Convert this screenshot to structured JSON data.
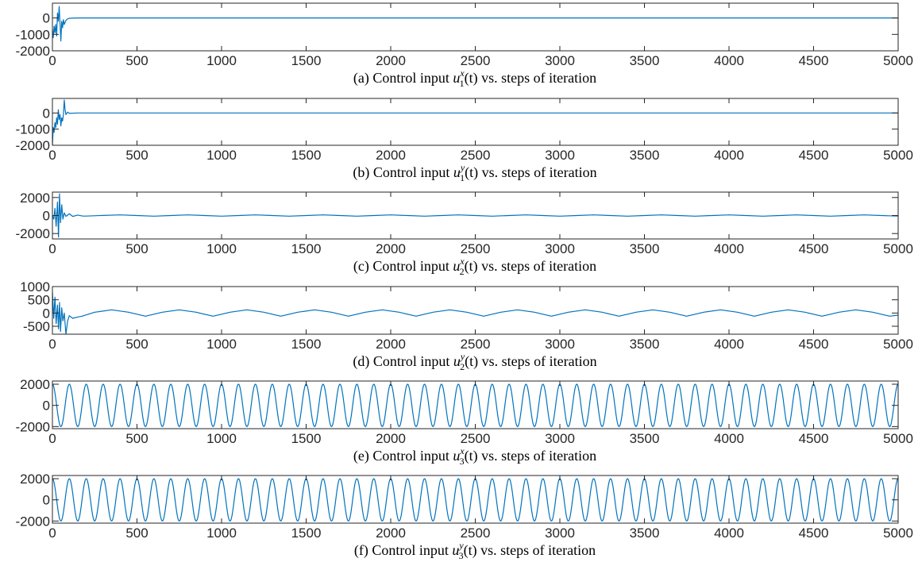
{
  "chart_data": [
    {
      "type": "line",
      "caption": {
        "prefix": "(a) Control input ",
        "var": "u",
        "sub": "1",
        "sup": "x",
        "suffix": "(t) vs. steps of iteration"
      },
      "xlim": [
        0,
        5000
      ],
      "xticks": [
        0,
        500,
        1000,
        1500,
        2000,
        2500,
        3000,
        3500,
        4000,
        4500,
        5000
      ],
      "ylim": [
        -2000,
        900
      ],
      "yticks": [
        -2000,
        -1000,
        0
      ],
      "series": [
        {
          "points": [
            [
              0,
              -700
            ],
            [
              5,
              -1200
            ],
            [
              10,
              -500
            ],
            [
              15,
              -900
            ],
            [
              20,
              -400
            ],
            [
              25,
              -1100
            ],
            [
              30,
              300
            ],
            [
              35,
              -200
            ],
            [
              40,
              700
            ],
            [
              45,
              -300
            ],
            [
              50,
              -1400
            ],
            [
              55,
              -200
            ],
            [
              60,
              -600
            ],
            [
              65,
              -100
            ],
            [
              70,
              -400
            ],
            [
              80,
              -150
            ],
            [
              90,
              -60
            ],
            [
              100,
              -20
            ],
            [
              150,
              0
            ],
            [
              5000,
              0
            ]
          ]
        }
      ]
    },
    {
      "type": "line",
      "caption": {
        "prefix": "(b) Control input ",
        "var": "u",
        "sub": "1",
        "sup": "y",
        "suffix": "(t) vs. steps of iteration"
      },
      "xlim": [
        0,
        5000
      ],
      "xticks": [
        0,
        500,
        1000,
        1500,
        2000,
        2500,
        3000,
        3500,
        4000,
        4500,
        5000
      ],
      "ylim": [
        -2000,
        900
      ],
      "yticks": [
        -2000,
        -1000,
        0
      ],
      "series": [
        {
          "points": [
            [
              0,
              -2000
            ],
            [
              5,
              -900
            ],
            [
              10,
              -1200
            ],
            [
              15,
              -600
            ],
            [
              20,
              -900
            ],
            [
              25,
              -300
            ],
            [
              30,
              -700
            ],
            [
              35,
              200
            ],
            [
              40,
              -400
            ],
            [
              45,
              -100
            ],
            [
              50,
              -800
            ],
            [
              55,
              -300
            ],
            [
              60,
              -500
            ],
            [
              65,
              -100
            ],
            [
              70,
              800
            ],
            [
              75,
              200
            ],
            [
              80,
              -100
            ],
            [
              90,
              50
            ],
            [
              100,
              -20
            ],
            [
              150,
              0
            ],
            [
              5000,
              0
            ]
          ]
        }
      ]
    },
    {
      "type": "line",
      "caption": {
        "prefix": "(c) Control input ",
        "var": "u",
        "sub": "2",
        "sup": "x",
        "suffix": "(t) vs. steps of iteration"
      },
      "xlim": [
        0,
        5000
      ],
      "xticks": [
        0,
        500,
        1000,
        1500,
        2000,
        2500,
        3000,
        3500,
        4000,
        4500,
        5000
      ],
      "ylim": [
        -2600,
        2600
      ],
      "yticks": [
        -2000,
        0,
        2000
      ],
      "series": [
        {
          "points": [
            [
              0,
              0
            ],
            [
              8,
              -400
            ],
            [
              15,
              800
            ],
            [
              22,
              -1200
            ],
            [
              30,
              1500
            ],
            [
              36,
              -2400
            ],
            [
              42,
              2400
            ],
            [
              48,
              -800
            ],
            [
              55,
              1200
            ],
            [
              62,
              -400
            ],
            [
              70,
              300
            ],
            [
              80,
              -100
            ],
            [
              100,
              200
            ],
            [
              120,
              -100
            ],
            [
              150,
              50
            ],
            [
              180,
              -60
            ],
            [
              200,
              -60
            ],
            [
              300,
              10
            ],
            [
              400,
              70
            ],
            [
              500,
              0
            ],
            [
              600,
              -70
            ],
            [
              700,
              0
            ],
            [
              800,
              70
            ],
            [
              900,
              0
            ],
            [
              1000,
              -70
            ],
            [
              1100,
              0
            ],
            [
              1200,
              70
            ],
            [
              1300,
              0
            ],
            [
              1400,
              -70
            ],
            [
              1500,
              0
            ],
            [
              1600,
              70
            ],
            [
              1700,
              0
            ],
            [
              1800,
              -70
            ],
            [
              1900,
              0
            ],
            [
              2000,
              70
            ],
            [
              2100,
              0
            ],
            [
              2200,
              -70
            ],
            [
              2300,
              0
            ],
            [
              2400,
              70
            ],
            [
              2500,
              0
            ],
            [
              2600,
              -70
            ],
            [
              2700,
              0
            ],
            [
              2800,
              70
            ],
            [
              2900,
              0
            ],
            [
              3000,
              -70
            ],
            [
              3100,
              0
            ],
            [
              3200,
              70
            ],
            [
              3300,
              0
            ],
            [
              3400,
              -70
            ],
            [
              3500,
              0
            ],
            [
              3600,
              70
            ],
            [
              3700,
              0
            ],
            [
              3800,
              -70
            ],
            [
              3900,
              0
            ],
            [
              4000,
              70
            ],
            [
              4100,
              0
            ],
            [
              4200,
              -70
            ],
            [
              4300,
              0
            ],
            [
              4400,
              70
            ],
            [
              4500,
              0
            ],
            [
              4600,
              -70
            ],
            [
              4700,
              0
            ],
            [
              4800,
              70
            ],
            [
              4900,
              0
            ],
            [
              4960,
              -40
            ],
            [
              5000,
              -60
            ]
          ]
        }
      ]
    },
    {
      "type": "line",
      "caption": {
        "prefix": "(d) Control input ",
        "var": "u",
        "sub": "2",
        "sup": "y",
        "suffix": "(t) vs. steps of iteration"
      },
      "xlim": [
        0,
        5000
      ],
      "xticks": [
        0,
        500,
        1000,
        1500,
        2000,
        2500,
        3000,
        3500,
        4000,
        4500,
        5000
      ],
      "ylim": [
        -800,
        1000
      ],
      "yticks": [
        -500,
        0,
        500,
        1000
      ],
      "series": [
        {
          "points": [
            [
              0,
              800
            ],
            [
              8,
              -200
            ],
            [
              15,
              600
            ],
            [
              22,
              -400
            ],
            [
              30,
              300
            ],
            [
              36,
              -600
            ],
            [
              42,
              400
            ],
            [
              48,
              -700
            ],
            [
              55,
              200
            ],
            [
              62,
              -300
            ],
            [
              70,
              0
            ],
            [
              80,
              -800
            ],
            [
              90,
              -300
            ],
            [
              100,
              -100
            ],
            [
              120,
              -200
            ],
            [
              150,
              -150
            ],
            [
              175,
              -120
            ],
            [
              250,
              30
            ],
            [
              350,
              120
            ],
            [
              450,
              30
            ],
            [
              550,
              -120
            ],
            [
              650,
              30
            ],
            [
              750,
              120
            ],
            [
              850,
              30
            ],
            [
              950,
              -120
            ],
            [
              1050,
              30
            ],
            [
              1150,
              120
            ],
            [
              1250,
              30
            ],
            [
              1350,
              -120
            ],
            [
              1450,
              30
            ],
            [
              1550,
              120
            ],
            [
              1650,
              30
            ],
            [
              1750,
              -120
            ],
            [
              1850,
              30
            ],
            [
              1950,
              120
            ],
            [
              2050,
              30
            ],
            [
              2150,
              -120
            ],
            [
              2250,
              30
            ],
            [
              2350,
              120
            ],
            [
              2450,
              30
            ],
            [
              2550,
              -120
            ],
            [
              2650,
              30
            ],
            [
              2750,
              120
            ],
            [
              2850,
              30
            ],
            [
              2950,
              -120
            ],
            [
              3050,
              30
            ],
            [
              3150,
              120
            ],
            [
              3250,
              30
            ],
            [
              3350,
              -120
            ],
            [
              3450,
              30
            ],
            [
              3550,
              120
            ],
            [
              3650,
              30
            ],
            [
              3750,
              -120
            ],
            [
              3850,
              30
            ],
            [
              3950,
              120
            ],
            [
              4050,
              30
            ],
            [
              4150,
              -120
            ],
            [
              4250,
              30
            ],
            [
              4350,
              120
            ],
            [
              4450,
              30
            ],
            [
              4550,
              -120
            ],
            [
              4650,
              30
            ],
            [
              4750,
              120
            ],
            [
              4850,
              30
            ],
            [
              4950,
              -120
            ],
            [
              5000,
              -80
            ]
          ]
        }
      ]
    },
    {
      "type": "line",
      "caption": {
        "prefix": "(e) Control input ",
        "var": "u",
        "sub": "3",
        "sup": "x",
        "suffix": "(t) vs. steps of iteration"
      },
      "xlim": [
        0,
        5000
      ],
      "xticks": [
        0,
        500,
        1000,
        1500,
        2000,
        2500,
        3000,
        3500,
        4000,
        4500,
        5000
      ],
      "ylim": [
        -2200,
        2300
      ],
      "yticks": [
        -2000,
        0,
        2000
      ],
      "oscillation": {
        "period": 100,
        "amplitude": 2000,
        "offset": 0,
        "from": 0,
        "to": 5000
      }
    },
    {
      "type": "line",
      "caption": {
        "prefix": "(f) Control input ",
        "var": "u",
        "sub": "3",
        "sup": "y",
        "suffix": "(t) vs. steps of iteration"
      },
      "xlim": [
        0,
        5000
      ],
      "xticks": [
        0,
        500,
        1000,
        1500,
        2000,
        2500,
        3000,
        3500,
        4000,
        4500,
        5000
      ],
      "ylim": [
        -2200,
        2300
      ],
      "yticks": [
        -2000,
        0,
        2000
      ],
      "oscillation": {
        "period": 100,
        "amplitude": 2000,
        "offset": 0,
        "from": 0,
        "to": 5000
      }
    }
  ],
  "colors": {
    "series": "#0072bd",
    "axis": "#262626"
  }
}
